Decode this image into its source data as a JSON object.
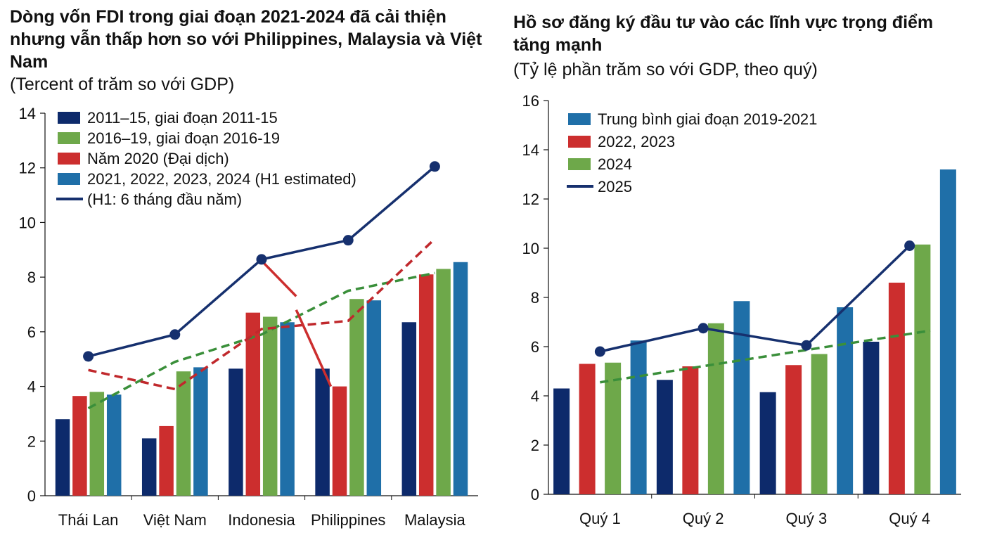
{
  "chart_data": [
    {
      "type": "bar",
      "title": "Dòng vốn FDI trong giai đoạn 2021-2024 đã cải thiện nhưng vẫn thấp hơn so với Philippines, Malaysia và Việt Nam",
      "subtitle": "(Tercent of trăm so với GDP)",
      "categories": [
        "Thái Lan",
        "Việt Nam",
        "Indonesia",
        "Philippines",
        "Malaysia"
      ],
      "ylim": [
        0,
        14
      ],
      "yticks": [
        "0",
        "2",
        "4",
        "6",
        "8",
        "10",
        "12",
        "14"
      ],
      "series": [
        {
          "name": "2011–15, giai đoạn 2011-15",
          "kind": "bar",
          "color": "#0d2a6b",
          "values": [
            2.8,
            2.1,
            4.65,
            4.65,
            6.35
          ]
        },
        {
          "name": "2016–19, giai đoạn 2016-19",
          "kind": "bar",
          "color": "#6ea84a",
          "values": [
            3.8,
            4.55,
            6.55,
            7.2,
            8.3
          ]
        },
        {
          "name": "Năm 2020  (Đại dịch)",
          "kind": "bar",
          "color": "#cc2e2e",
          "values": [
            3.65,
            2.55,
            6.7,
            4.0,
            8.1
          ]
        },
        {
          "name": "2021, 2022, 2023, 2024 (H1 estimated)",
          "kind": "bar",
          "color": "#1f6fa8",
          "values": [
            3.7,
            4.7,
            6.35,
            7.15,
            8.55
          ]
        },
        {
          "name": "(H1: 6 tháng đầu năm)",
          "kind": "line",
          "color": "#16306e",
          "values": [
            5.1,
            5.9,
            8.65,
            9.35,
            12.05
          ]
        }
      ],
      "extra_lines": [
        {
          "style": "dashed",
          "color": "#3a8f3a",
          "points": [
            [
              0,
              3.2
            ],
            [
              1,
              4.9
            ],
            [
              2,
              5.9
            ],
            [
              3,
              7.5
            ],
            [
              4,
              8.15
            ]
          ]
        },
        {
          "style": "dashed",
          "color": "#c0282c",
          "points": [
            [
              0,
              4.6
            ],
            [
              1,
              3.9
            ],
            [
              2,
              6.1
            ],
            [
              3,
              6.4
            ],
            [
              4,
              9.4
            ]
          ]
        },
        {
          "style": "solid",
          "color": "#cc2e2e",
          "points": [
            [
              2,
              8.6
            ],
            [
              2.4,
              7.3
            ]
          ]
        },
        {
          "style": "solid",
          "color": "#cc2e2e",
          "points": [
            [
              2.4,
              6.8
            ],
            [
              2.8,
              4.0
            ]
          ]
        }
      ]
    },
    {
      "type": "bar",
      "title": "Hồ sơ đăng ký đầu tư vào các lĩnh vực trọng điểm tăng mạnh",
      "subtitle": "(Tỷ lệ phần trăm so với GDP, theo quý)",
      "categories": [
        "Quý 1",
        "Quý 2",
        "Quý 3",
        "Quý 4"
      ],
      "ylim": [
        0,
        16
      ],
      "yticks": [
        "0",
        "2",
        "4",
        "6",
        "8",
        "10",
        "12",
        "14",
        "16"
      ],
      "series": [
        {
          "name": "(unlabeled)",
          "kind": "bar",
          "color": "#0d2a6b",
          "values": [
            4.3,
            4.65,
            4.15,
            6.2
          ]
        },
        {
          "name": "2022, 2023",
          "kind": "bar",
          "color": "#cc2e2e",
          "values": [
            5.3,
            5.2,
            5.25,
            8.6
          ]
        },
        {
          "name": "2024",
          "kind": "bar",
          "color": "#6ea84a",
          "values": [
            5.35,
            6.95,
            5.7,
            10.15
          ]
        },
        {
          "name": "Trung bình giai đoạn 2019-2021",
          "kind": "bar",
          "color": "#1f6fa8",
          "values": [
            6.25,
            7.85,
            7.6,
            13.2
          ]
        },
        {
          "name": "2025",
          "kind": "line",
          "color": "#16306e",
          "values": [
            5.8,
            6.75,
            6.05,
            10.1
          ]
        }
      ],
      "extra_lines": [
        {
          "style": "dashed",
          "color": "#3a8f3a",
          "points": [
            [
              0,
              4.55
            ],
            [
              3.2,
              6.65
            ]
          ]
        }
      ]
    }
  ]
}
